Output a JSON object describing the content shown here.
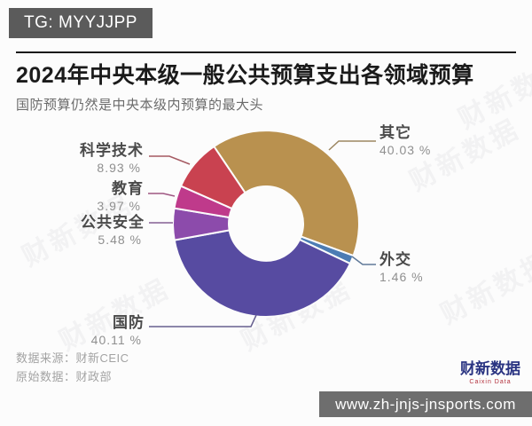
{
  "badge": {
    "text": "TG: MYYJJPP"
  },
  "header": {
    "title": "2024年中央本级一般公共预算支出各领域预算",
    "subtitle": "国防预算仍然是中央本级内预算的最大头"
  },
  "chart_data": {
    "type": "pie",
    "donut": true,
    "title": "2024年中央本级一般公共预算支出各领域预算",
    "subtitle": "国防预算仍然是中央本级内预算的最大头",
    "unit": "%",
    "start_angle_deg": -34,
    "clockwise": true,
    "slices": [
      {
        "label": "其它",
        "value": 40.03,
        "value_label": "40.03 %",
        "color": "#B9914F"
      },
      {
        "label": "外交",
        "value": 1.46,
        "value_label": "1.46 %",
        "color": "#4C7CB4"
      },
      {
        "label": "国防",
        "value": 40.11,
        "value_label": "40.11 %",
        "color": "#574BA1"
      },
      {
        "label": "公共安全",
        "value": 5.48,
        "value_label": "5.48 %",
        "color": "#8C4BAB"
      },
      {
        "label": "教育",
        "value": 3.97,
        "value_label": "3.97 %",
        "color": "#BF3A8B"
      },
      {
        "label": "科学技术",
        "value": 8.93,
        "value_label": "8.93 %",
        "color": "#C94250"
      }
    ]
  },
  "footer": {
    "source_line1": "数据来源：财新CEIC",
    "source_line2": "原始数据：财政部",
    "logo_cn": "财新数据",
    "logo_en": "Caixin Data"
  },
  "watermark": {
    "text": "财新数据"
  },
  "url_bar": {
    "text": "www.zh-jnjs-jnsports.com"
  }
}
